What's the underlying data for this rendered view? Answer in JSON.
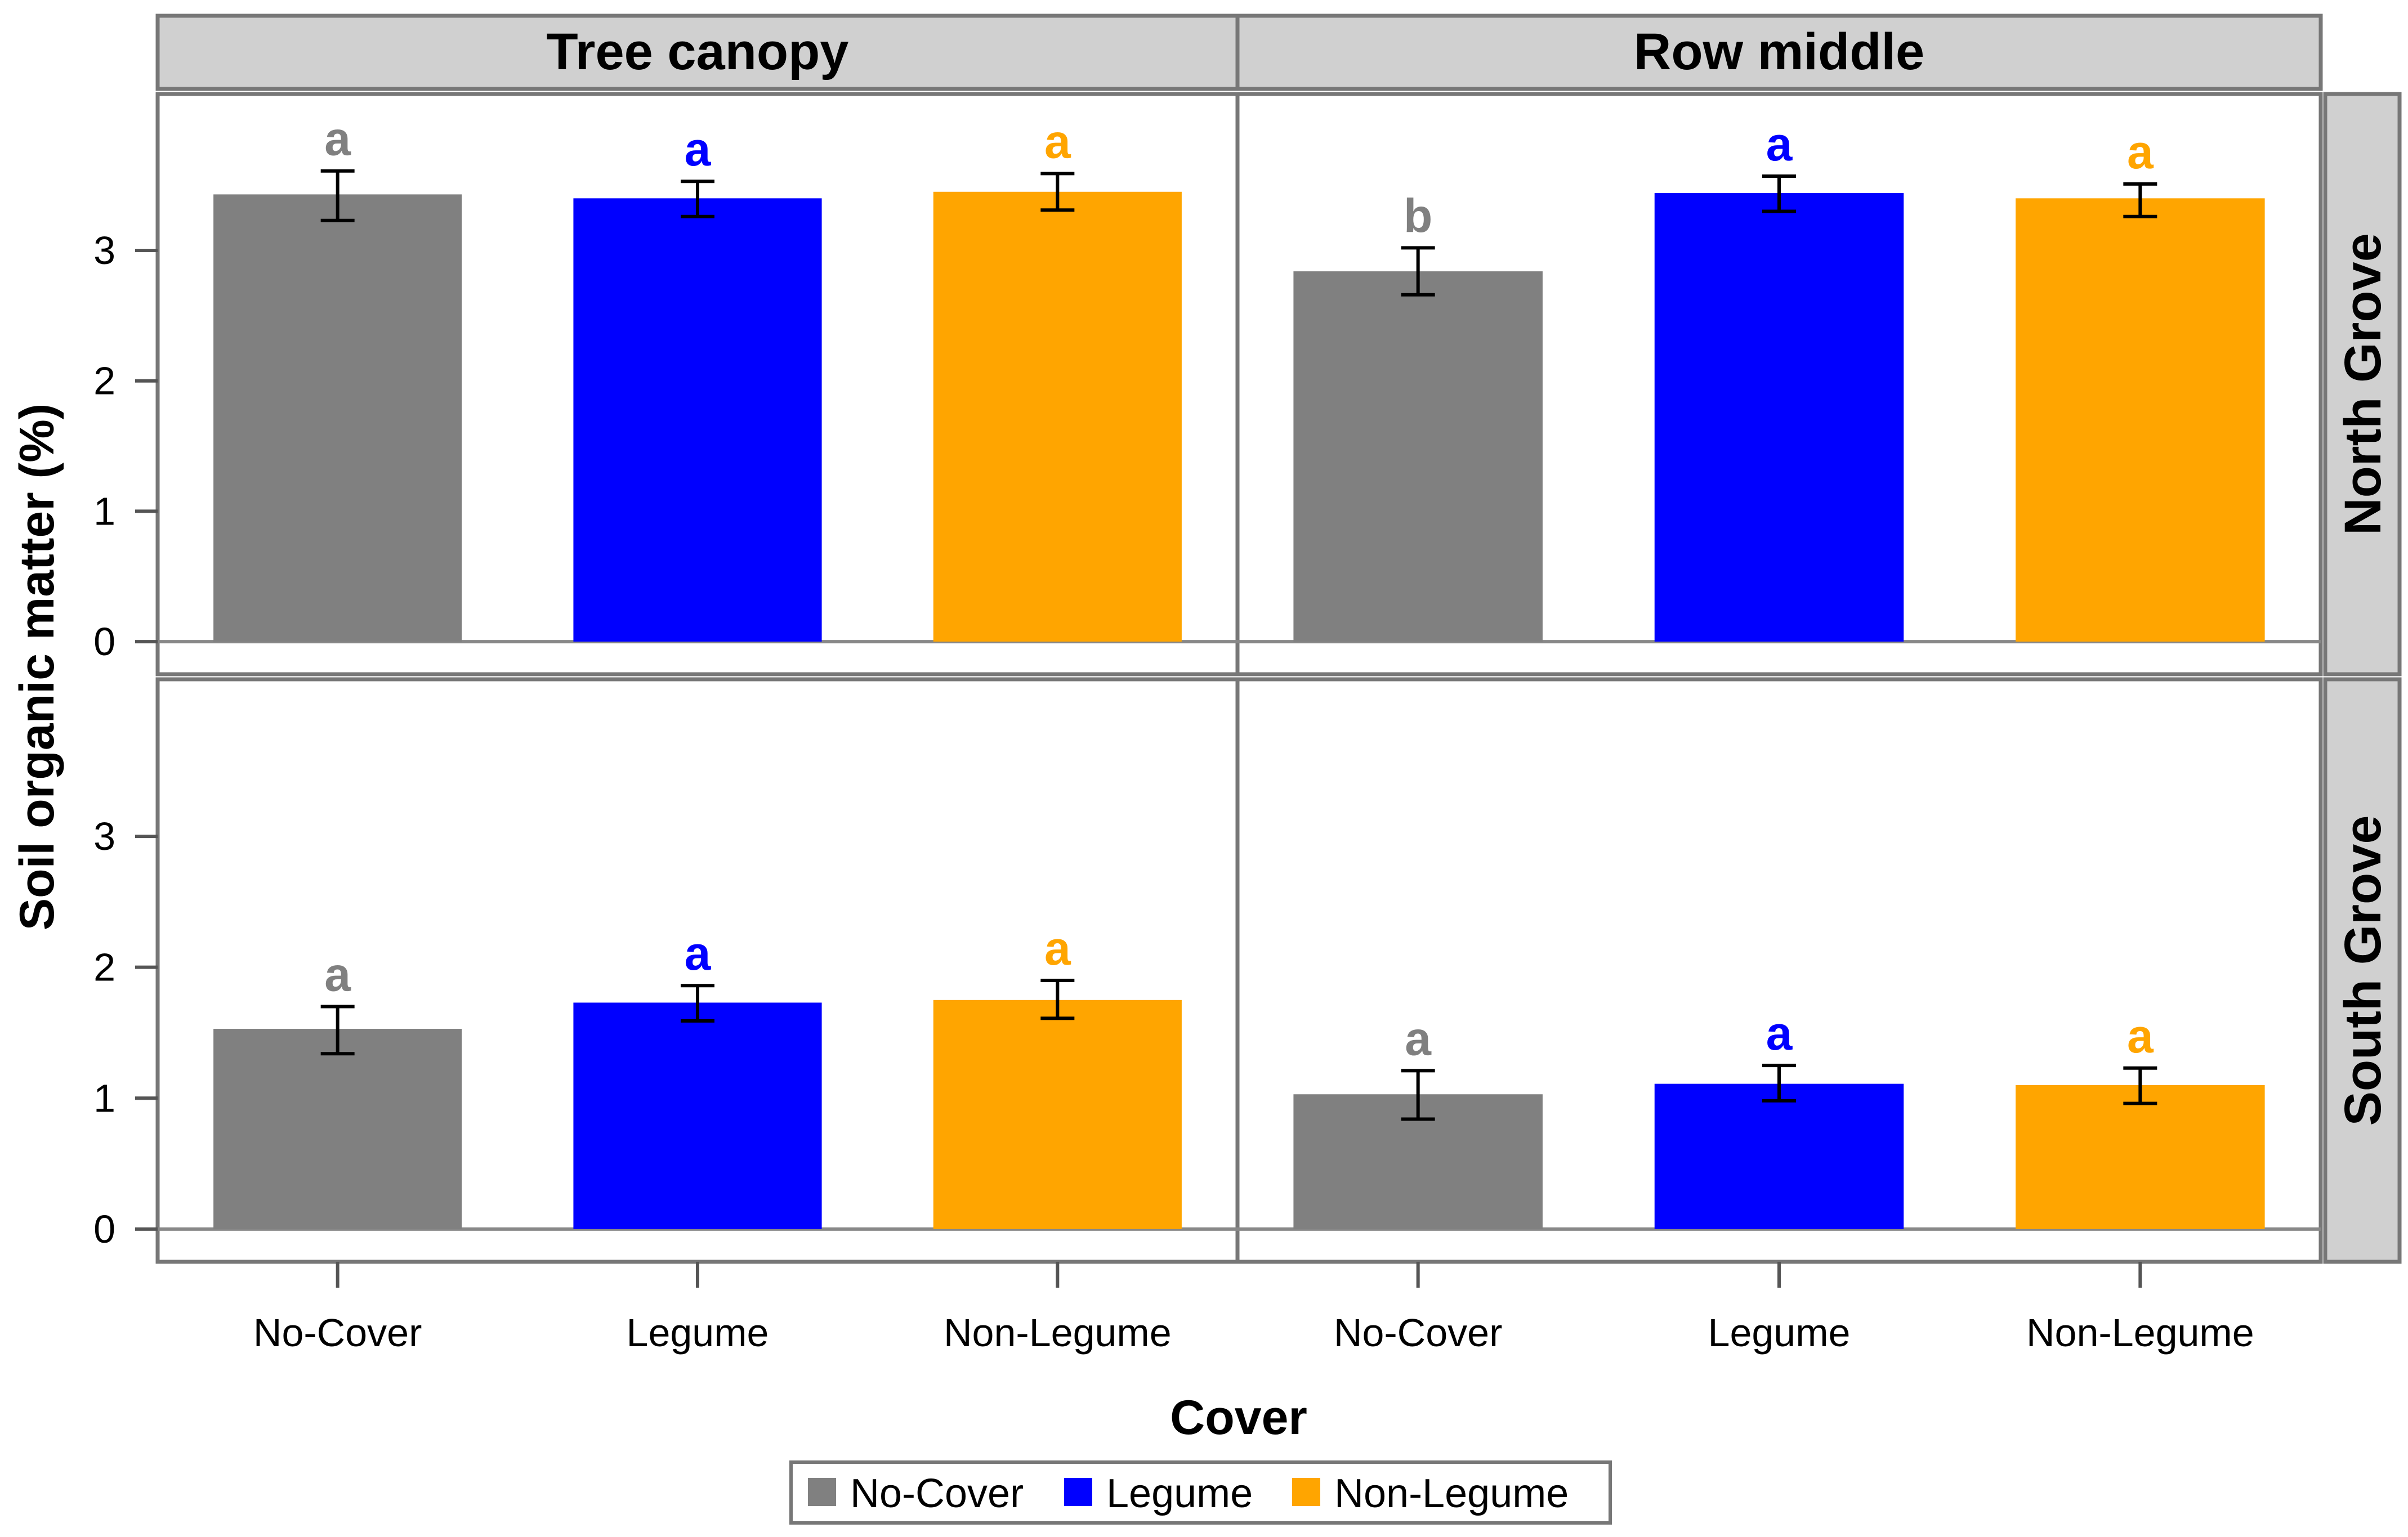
{
  "chart_data": {
    "type": "bar",
    "xlabel": "Cover",
    "ylabel": "Soil organic matter (%)",
    "ylim": [
      -0.25,
      4.2
    ],
    "yticks": [
      0,
      1,
      2,
      3
    ],
    "categories": [
      "No-Cover",
      "Legume",
      "Non-Legume"
    ],
    "colors": {
      "No-Cover": "#808080",
      "Legume": "#0000ff",
      "Non-Legume": "#ffa500"
    },
    "columns": [
      "Tree canopy",
      "Row middle"
    ],
    "rows": [
      "North Grove",
      "South Grove"
    ],
    "legend": {
      "position": "bottom",
      "entries": [
        "No-Cover",
        "Legume",
        "Non-Legume"
      ]
    },
    "panels": [
      {
        "column": "Tree canopy",
        "row": "North Grove",
        "values": [
          3.43,
          3.4,
          3.45
        ],
        "err_low": [
          3.23,
          3.26,
          3.31
        ],
        "err_high": [
          3.61,
          3.53,
          3.59
        ],
        "letters": [
          "a",
          "a",
          "a"
        ]
      },
      {
        "column": "Row middle",
        "row": "North Grove",
        "values": [
          2.84,
          3.44,
          3.4
        ],
        "err_low": [
          2.66,
          3.3,
          3.26
        ],
        "err_high": [
          3.02,
          3.57,
          3.51
        ],
        "letters": [
          "b",
          "a",
          "a"
        ]
      },
      {
        "column": "Tree canopy",
        "row": "South Grove",
        "values": [
          1.53,
          1.73,
          1.75
        ],
        "err_low": [
          1.34,
          1.59,
          1.61
        ],
        "err_high": [
          1.7,
          1.86,
          1.9
        ],
        "letters": [
          "a",
          "a",
          "a"
        ]
      },
      {
        "column": "Row middle",
        "row": "South Grove",
        "values": [
          1.03,
          1.11,
          1.1
        ],
        "err_low": [
          0.84,
          0.98,
          0.96
        ],
        "err_high": [
          1.21,
          1.25,
          1.23
        ],
        "letters": [
          "a",
          "a",
          "a"
        ]
      }
    ]
  }
}
